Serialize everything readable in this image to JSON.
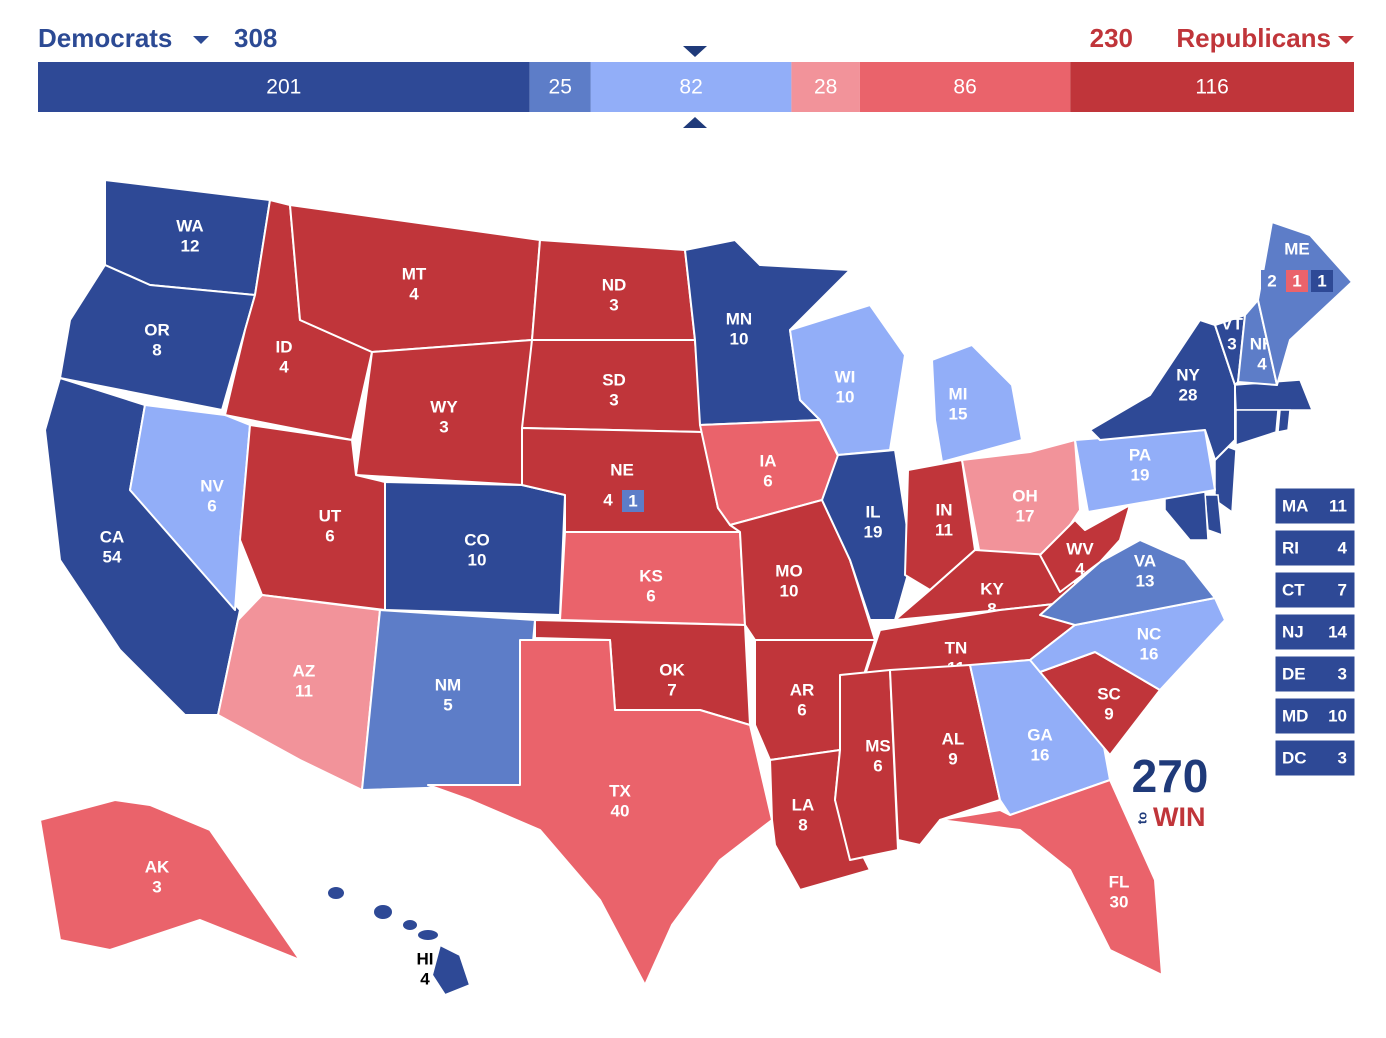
{
  "header": {
    "dem_label": "Democrats",
    "dem_total": 308,
    "dem_color": "#2c4a94",
    "rep_total": 230,
    "rep_label": "Republicans",
    "rep_color": "#c0353a"
  },
  "bar": {
    "segments": [
      {
        "value": 201,
        "color": "#2e4996"
      },
      {
        "value": 25,
        "color": "#5d7dc8"
      },
      {
        "value": 82,
        "color": "#92aef8"
      },
      {
        "value": 28,
        "color": "#f2939a"
      },
      {
        "value": 86,
        "color": "#ea636b"
      },
      {
        "value": 116,
        "color": "#c0353a"
      }
    ]
  },
  "states": [
    {
      "abbr": "WA",
      "ev": 12,
      "color": "#2e4996"
    },
    {
      "abbr": "OR",
      "ev": 8,
      "color": "#2e4996"
    },
    {
      "abbr": "CA",
      "ev": 54,
      "color": "#2e4996"
    },
    {
      "abbr": "NV",
      "ev": 6,
      "color": "#92aef8"
    },
    {
      "abbr": "ID",
      "ev": 4,
      "color": "#c0353a"
    },
    {
      "abbr": "MT",
      "ev": 4,
      "color": "#c0353a"
    },
    {
      "abbr": "WY",
      "ev": 3,
      "color": "#c0353a"
    },
    {
      "abbr": "UT",
      "ev": 6,
      "color": "#c0353a"
    },
    {
      "abbr": "CO",
      "ev": 10,
      "color": "#2e4996"
    },
    {
      "abbr": "AZ",
      "ev": 11,
      "color": "#f2939a"
    },
    {
      "abbr": "NM",
      "ev": 5,
      "color": "#5d7dc8"
    },
    {
      "abbr": "ND",
      "ev": 3,
      "color": "#c0353a"
    },
    {
      "abbr": "SD",
      "ev": 3,
      "color": "#c0353a"
    },
    {
      "abbr": "NE",
      "ev": 4,
      "color": "#c0353a"
    },
    {
      "abbr": "KS",
      "ev": 6,
      "color": "#ea636b"
    },
    {
      "abbr": "OK",
      "ev": 7,
      "color": "#c0353a"
    },
    {
      "abbr": "TX",
      "ev": 40,
      "color": "#ea636b"
    },
    {
      "abbr": "MN",
      "ev": 10,
      "color": "#2e4996"
    },
    {
      "abbr": "IA",
      "ev": 6,
      "color": "#ea636b"
    },
    {
      "abbr": "MO",
      "ev": 10,
      "color": "#c0353a"
    },
    {
      "abbr": "AR",
      "ev": 6,
      "color": "#c0353a"
    },
    {
      "abbr": "LA",
      "ev": 8,
      "color": "#c0353a"
    },
    {
      "abbr": "WI",
      "ev": 10,
      "color": "#92aef8"
    },
    {
      "abbr": "IL",
      "ev": 19,
      "color": "#2e4996"
    },
    {
      "abbr": "MI",
      "ev": 15,
      "color": "#92aef8"
    },
    {
      "abbr": "IN",
      "ev": 11,
      "color": "#c0353a"
    },
    {
      "abbr": "OH",
      "ev": 17,
      "color": "#f2939a"
    },
    {
      "abbr": "KY",
      "ev": 8,
      "color": "#c0353a"
    },
    {
      "abbr": "TN",
      "ev": 11,
      "color": "#c0353a"
    },
    {
      "abbr": "MS",
      "ev": 6,
      "color": "#c0353a"
    },
    {
      "abbr": "AL",
      "ev": 9,
      "color": "#c0353a"
    },
    {
      "abbr": "GA",
      "ev": 16,
      "color": "#92aef8"
    },
    {
      "abbr": "FL",
      "ev": 30,
      "color": "#ea636b"
    },
    {
      "abbr": "SC",
      "ev": 9,
      "color": "#c0353a"
    },
    {
      "abbr": "NC",
      "ev": 16,
      "color": "#92aef8"
    },
    {
      "abbr": "VA",
      "ev": 13,
      "color": "#5d7dc8"
    },
    {
      "abbr": "WV",
      "ev": 4,
      "color": "#c0353a"
    },
    {
      "abbr": "PA",
      "ev": 19,
      "color": "#92aef8"
    },
    {
      "abbr": "NY",
      "ev": 28,
      "color": "#2e4996"
    },
    {
      "abbr": "VT",
      "ev": 3,
      "color": "#2e4996"
    },
    {
      "abbr": "NH",
      "ev": 4,
      "color": "#5d7dc8"
    },
    {
      "abbr": "ME",
      "color": "#5d7dc8"
    },
    {
      "abbr": "AK",
      "ev": 3,
      "color": "#ea636b"
    },
    {
      "abbr": "HI",
      "ev": 4,
      "color": "#2e4996"
    }
  ],
  "districts": {
    "NE": [
      {
        "value": 1,
        "color": "#5d7dc8"
      }
    ],
    "ME": [
      {
        "value": 2,
        "color": "#5d7dc8"
      },
      {
        "value": 1,
        "color": "#ea636b"
      },
      {
        "value": 1,
        "color": "#2e4996"
      }
    ]
  },
  "small_states": [
    {
      "abbr": "MA",
      "ev": 11,
      "color": "#2e4996"
    },
    {
      "abbr": "RI",
      "ev": 4,
      "color": "#2e4996"
    },
    {
      "abbr": "CT",
      "ev": 7,
      "color": "#2e4996"
    },
    {
      "abbr": "NJ",
      "ev": 14,
      "color": "#2e4996"
    },
    {
      "abbr": "DE",
      "ev": 3,
      "color": "#2e4996"
    },
    {
      "abbr": "MD",
      "ev": 10,
      "color": "#2e4996"
    },
    {
      "abbr": "DC",
      "ev": 3,
      "color": "#2e4996"
    }
  ],
  "logo": {
    "top": "270",
    "mid": "to",
    "bottom": "WIN"
  }
}
